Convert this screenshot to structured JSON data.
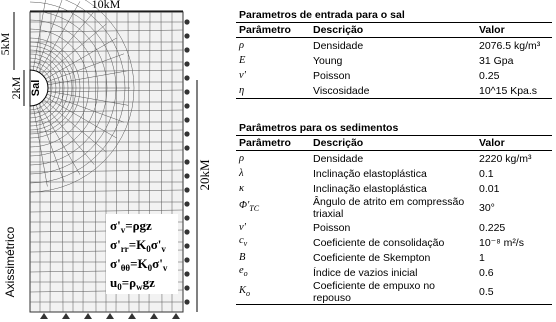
{
  "figure": {
    "dimensions": {
      "width": "10kM",
      "top_depth": "5kM",
      "salt_height": "2kM",
      "salt": "Sal",
      "depth": "20kM",
      "axis": "Axissimétrico"
    },
    "equations": [
      [
        "σ'",
        "v",
        "=ρgz"
      ],
      [
        "σ'",
        "rr",
        "=K",
        "0",
        "σ'",
        "v"
      ],
      [
        "σ'",
        "θθ",
        "=K",
        "0",
        "σ'",
        "v"
      ],
      [
        "u",
        "0",
        "=ρ",
        "w",
        "gz"
      ]
    ],
    "tables": [
      {
        "title": "Parametros de entrada para o sal",
        "header": [
          "Parâmetro",
          "Descrição",
          "Valor"
        ],
        "rows": [
          [
            "ρ",
            "Densidade",
            "2076.5 kg/m³"
          ],
          [
            "E",
            "Young",
            "31 Gpa"
          ],
          [
            "ν'",
            "Poisson",
            "0.25"
          ],
          [
            "η",
            "Viscosidade",
            "10^15 Kpa.s"
          ]
        ]
      },
      {
        "title": "Parâmetros para os sedimentos",
        "header": [
          "Parâmetro",
          "Descrição",
          "Valor"
        ],
        "rows": [
          [
            "ρ",
            "Densidade",
            "2220 kg/m³"
          ],
          [
            "λ",
            "Inclinação elastoplástica",
            "0.1"
          ],
          [
            "κ",
            "Inclinação elastoplástica",
            "0.01"
          ],
          [
            [
              "Φ'",
              "TC"
            ],
            "Ângulo de atrito em compressão triaxial",
            "30°"
          ],
          [
            "ν'",
            "Poisson",
            "0.225"
          ],
          [
            [
              "c",
              "v"
            ],
            "Coeficiente de consolidação",
            "10⁻⁸ m²/s"
          ],
          [
            "B",
            "Coeficiente de Skempton",
            "1"
          ],
          [
            [
              "e",
              "o"
            ],
            "Índice de vazios inicial",
            "0.6"
          ],
          [
            [
              "K",
              "o"
            ],
            "Coeficiente de empuxo no repouso",
            "0.5"
          ]
        ]
      }
    ]
  }
}
